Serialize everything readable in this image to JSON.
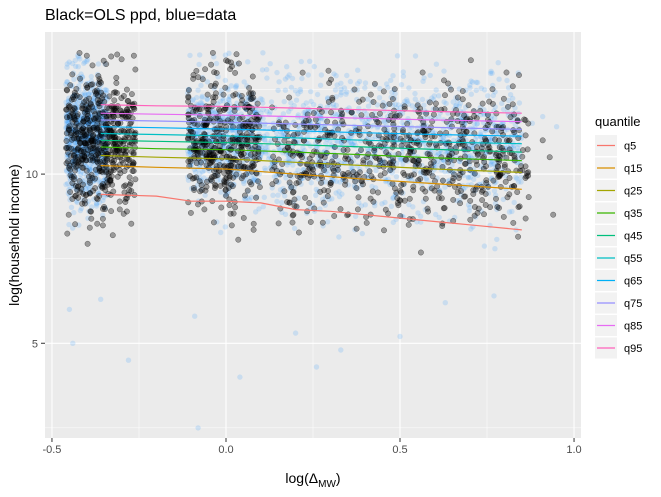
{
  "chart_data": {
    "type": "scatter",
    "title": "Black=OLS ppd, blue=data",
    "xlabel": "log(Δ_MW)",
    "xlabel_parts": [
      "log(",
      "Δ",
      "MW",
      ")"
    ],
    "ylabel": "log(household income)",
    "xlim": [
      -0.52,
      1.02
    ],
    "ylim": [
      2.2,
      14.2
    ],
    "x_ticks": [
      -0.5,
      0.0,
      0.5,
      1.0
    ],
    "x_tick_labels": [
      "-0.5",
      "0.0",
      "0.5",
      "1.0"
    ],
    "y_ticks": [
      5,
      10
    ],
    "y_tick_labels": [
      "5",
      "10"
    ],
    "grid": true,
    "legend_placement": "right",
    "legend_title": "quantile",
    "point_layers": [
      {
        "name": "data",
        "color": "#3399ff",
        "opacity": 0.18,
        "clusters": [
          {
            "x_range": [
              -0.46,
              -0.34
            ],
            "y_center": 11.1,
            "y_sd": 0.9,
            "count": 700
          },
          {
            "x_range": [
              -0.11,
              0.1
            ],
            "y_center": 11.1,
            "y_sd": 0.9,
            "count": 500
          },
          {
            "x_range": [
              0.1,
              0.85
            ],
            "y_center": 10.9,
            "y_sd": 1.0,
            "count": 1100
          }
        ],
        "outliers": [
          {
            "x": -0.45,
            "y": 6.0
          },
          {
            "x": -0.44,
            "y": 5.0
          },
          {
            "x": -0.36,
            "y": 6.3
          },
          {
            "x": -0.28,
            "y": 4.5
          },
          {
            "x": -0.09,
            "y": 5.8
          },
          {
            "x": 0.04,
            "y": 4.0
          },
          {
            "x": -0.08,
            "y": 2.5
          },
          {
            "x": 0.2,
            "y": 5.3
          },
          {
            "x": 0.33,
            "y": 4.8
          },
          {
            "x": 0.26,
            "y": 4.3
          },
          {
            "x": 0.5,
            "y": 5.2
          },
          {
            "x": 0.77,
            "y": 6.4
          },
          {
            "x": 0.63,
            "y": 6.2
          },
          {
            "x": 0.91,
            "y": 11.7
          },
          {
            "x": 0.88,
            "y": 11.5
          },
          {
            "x": 0.95,
            "y": 11.4
          }
        ]
      },
      {
        "name": "OLS ppd",
        "color": "#000000",
        "opacity": 0.35,
        "clusters": [
          {
            "x_range": [
              -0.46,
              -0.26
            ],
            "y_center": 11.0,
            "y_sd": 1.0,
            "count": 550
          },
          {
            "x_range": [
              -0.11,
              0.1
            ],
            "y_center": 10.9,
            "y_sd": 1.0,
            "count": 400
          },
          {
            "x_range": [
              0.13,
              0.87
            ],
            "y_center": 10.6,
            "y_sd": 1.0,
            "count": 650
          }
        ],
        "outliers": [
          {
            "x": 0.93,
            "y": 10.5
          },
          {
            "x": 0.94,
            "y": 8.8
          },
          {
            "x": 0.91,
            "y": 11.0
          },
          {
            "x": -0.06,
            "y": 13.1
          },
          {
            "x": -0.4,
            "y": 13.5
          },
          {
            "x": 0.22,
            "y": 13.0
          }
        ]
      }
    ],
    "series": [
      {
        "name": "q5",
        "color": "#F8766D",
        "x": [
          -0.36,
          -0.2,
          -0.1,
          0.0,
          0.1,
          0.2,
          0.3,
          0.4,
          0.5,
          0.6,
          0.7,
          0.85
        ],
        "y": [
          9.4,
          9.35,
          9.2,
          9.2,
          9.15,
          8.95,
          8.9,
          8.8,
          8.7,
          8.6,
          8.5,
          8.35
        ]
      },
      {
        "name": "q15",
        "color": "#D89000",
        "x": [
          -0.36,
          -0.2,
          0.0,
          0.2,
          0.4,
          0.6,
          0.85
        ],
        "y": [
          10.25,
          10.2,
          10.15,
          10.0,
          9.85,
          9.72,
          9.55
        ]
      },
      {
        "name": "q25",
        "color": "#A3A500",
        "x": [
          -0.36,
          -0.2,
          0.0,
          0.2,
          0.4,
          0.6,
          0.85
        ],
        "y": [
          10.55,
          10.5,
          10.45,
          10.35,
          10.25,
          10.15,
          10.05
        ]
      },
      {
        "name": "q35",
        "color": "#39B600",
        "x": [
          -0.36,
          -0.2,
          0.0,
          0.2,
          0.4,
          0.6,
          0.85
        ],
        "y": [
          10.8,
          10.75,
          10.72,
          10.65,
          10.57,
          10.48,
          10.4
        ]
      },
      {
        "name": "q45",
        "color": "#00BF7D",
        "x": [
          -0.36,
          -0.2,
          0.0,
          0.2,
          0.4,
          0.6,
          0.85
        ],
        "y": [
          11.0,
          10.97,
          10.93,
          10.87,
          10.8,
          10.73,
          10.65
        ]
      },
      {
        "name": "q55",
        "color": "#00BFC4",
        "x": [
          -0.36,
          -0.2,
          0.0,
          0.2,
          0.4,
          0.6,
          0.85
        ],
        "y": [
          11.2,
          11.17,
          11.13,
          11.07,
          11.0,
          10.95,
          10.9
        ]
      },
      {
        "name": "q65",
        "color": "#00B0F6",
        "x": [
          -0.36,
          -0.2,
          0.0,
          0.2,
          0.4,
          0.6,
          0.85
        ],
        "y": [
          11.4,
          11.37,
          11.33,
          11.28,
          11.22,
          11.17,
          11.12
        ]
      },
      {
        "name": "q75",
        "color": "#9590FF",
        "x": [
          -0.36,
          -0.2,
          0.0,
          0.2,
          0.4,
          0.6,
          0.85
        ],
        "y": [
          11.6,
          11.57,
          11.53,
          11.48,
          11.43,
          11.38,
          11.32
        ]
      },
      {
        "name": "q85",
        "color": "#E76BF3",
        "x": [
          -0.36,
          -0.2,
          0.0,
          0.2,
          0.4,
          0.6,
          0.85
        ],
        "y": [
          11.8,
          11.77,
          11.74,
          11.7,
          11.65,
          11.6,
          11.55
        ]
      },
      {
        "name": "q95",
        "color": "#FF62BC",
        "x": [
          -0.36,
          -0.2,
          0.0,
          0.2,
          0.4,
          0.6,
          0.85
        ],
        "y": [
          12.05,
          12.02,
          12.0,
          11.95,
          11.9,
          11.85,
          11.8
        ]
      }
    ]
  },
  "colors": {
    "panel_background": "#EBEBEB",
    "grid_major": "#FFFFFF",
    "legend_key_background": "#F2F2F2"
  }
}
